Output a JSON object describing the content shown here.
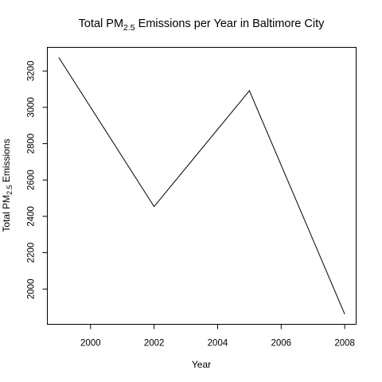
{
  "chart_data": {
    "type": "line",
    "title": {
      "prefix": "Total PM",
      "subscript": "2.5",
      "suffix": " Emissions per Year in Baltimore City"
    },
    "xlabel": "Year",
    "ylabel": {
      "prefix": "Total PM",
      "subscript": "2.5",
      "suffix": " Emissions"
    },
    "x": [
      1999,
      2002,
      2005,
      2008
    ],
    "series": [
      {
        "values": [
          3274.18,
          2453.92,
          3091.35,
          1862.28
        ]
      }
    ],
    "xlim": [
      1998.64,
      2008.36
    ],
    "ylim": [
      1806,
      3330
    ],
    "xticks": [
      2000,
      2002,
      2004,
      2006,
      2008
    ],
    "yticks": [
      2000,
      2200,
      2400,
      2600,
      2800,
      3000,
      3200
    ],
    "grid": false,
    "legend": "none",
    "colors": {
      "line": "#000000",
      "background": "#ffffff",
      "axes": "#000000"
    }
  }
}
